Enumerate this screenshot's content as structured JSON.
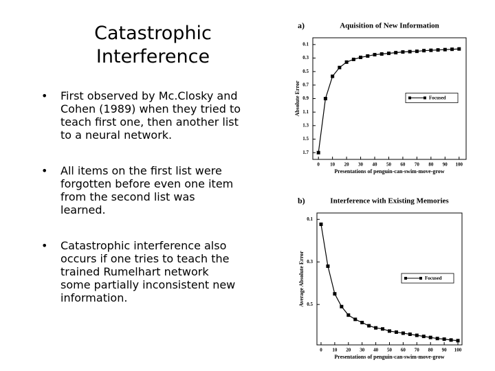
{
  "slide": {
    "title": [
      "Catastrophic",
      "Interference"
    ],
    "bullets": [
      "First observed by Mc.Closky and Cohen (1989) when they tried to teach first one, then another list to a neural network.",
      "All items on the first list were forgotten before even one item from the second list was learned.",
      "Catastrophic interference also occurs if one tries to teach the trained Rumelhart network some partially inconsistent new information."
    ]
  },
  "chart_data": [
    {
      "type": "line",
      "panel": "a)",
      "title": "Aquisition of New Information",
      "xlabel": "Presentations of penguin-can-swim-move-grow",
      "ylabel": "Absolute Error",
      "x": [
        0,
        5,
        10,
        15,
        20,
        25,
        30,
        35,
        40,
        45,
        50,
        55,
        60,
        65,
        70,
        75,
        80,
        85,
        90,
        95,
        100
      ],
      "series": [
        {
          "name": "Focused",
          "color": "#000000",
          "values": [
            1.7,
            0.9,
            0.57,
            0.44,
            0.36,
            0.32,
            0.29,
            0.27,
            0.25,
            0.24,
            0.23,
            0.22,
            0.21,
            0.205,
            0.2,
            0.19,
            0.185,
            0.18,
            0.175,
            0.17,
            0.165
          ]
        }
      ],
      "xlim": [
        -4,
        105
      ],
      "xticks": [
        0,
        10,
        20,
        30,
        40,
        50,
        60,
        70,
        80,
        90,
        100
      ],
      "ylim": [
        0,
        1.8
      ],
      "y_inverted": true,
      "yticks": [
        0.1,
        0.3,
        0.5,
        0.7,
        0.9,
        1.1,
        1.3,
        1.5,
        1.7
      ],
      "legend": "center right"
    },
    {
      "type": "line",
      "panel": "b)",
      "title": "Interference with Existing Memories",
      "xlabel": "Presentations of penguin-can-swim-move-grow",
      "ylabel": "Average Absolute Error",
      "x": [
        0,
        5,
        10,
        15,
        20,
        25,
        30,
        35,
        40,
        45,
        50,
        55,
        60,
        65,
        70,
        75,
        80,
        85,
        90,
        95,
        100
      ],
      "series": [
        {
          "name": "Focused",
          "color": "#000000",
          "values": [
            0.123,
            0.32,
            0.45,
            0.51,
            0.55,
            0.57,
            0.585,
            0.6,
            0.61,
            0.615,
            0.625,
            0.63,
            0.635,
            0.64,
            0.645,
            0.65,
            0.655,
            0.66,
            0.663,
            0.667,
            0.67
          ]
        }
      ],
      "xlim": [
        -3,
        103
      ],
      "xticks": [
        0,
        10,
        20,
        30,
        40,
        50,
        60,
        70,
        80,
        90,
        100
      ],
      "ylim": [
        0.07,
        0.69
      ],
      "y_inverted": true,
      "yticks": [
        0.1,
        0.3,
        0.5
      ],
      "legend": "center right"
    }
  ]
}
